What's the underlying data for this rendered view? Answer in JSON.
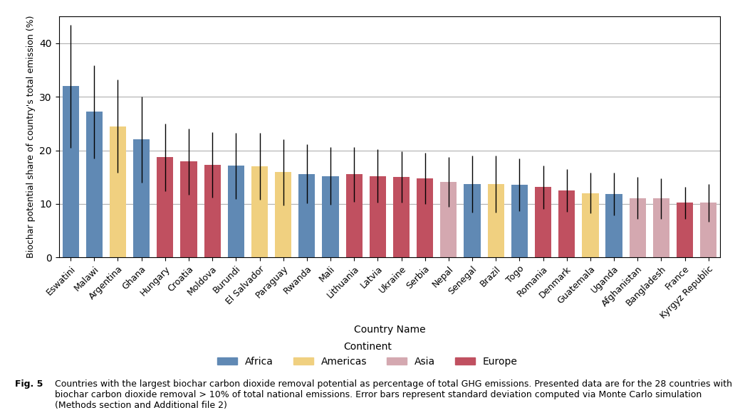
{
  "chart_data": {
    "type": "bar",
    "categories": [
      "Eswatini",
      "Malawi",
      "Argentina",
      "Ghana",
      "Hungary",
      "Croatia",
      "Moldova",
      "Burundi",
      "El Salvador",
      "Paraguay",
      "Rwanda",
      "Mali",
      "Lithuania",
      "Latvia",
      "Ukraine",
      "Serbia",
      "Nepal",
      "Senegal",
      "Brazil",
      "Togo",
      "Romania",
      "Denmark",
      "Guatemala",
      "Uganda",
      "Afghanistan",
      "Bangladesh",
      "France",
      "Kyrgyz Republic"
    ],
    "series": [
      {
        "name": "Africa",
        "color": "#6089B4",
        "values": [
          32.0,
          27.2,
          null,
          22.0,
          null,
          null,
          null,
          17.1,
          null,
          null,
          15.6,
          15.2,
          null,
          null,
          null,
          null,
          null,
          13.7,
          null,
          13.6,
          null,
          null,
          null,
          11.8,
          null,
          null,
          null,
          null
        ],
        "errors": [
          11.5,
          8.7,
          null,
          8.0,
          null,
          null,
          null,
          6.2,
          null,
          null,
          5.5,
          5.4,
          null,
          null,
          null,
          null,
          null,
          5.3,
          null,
          4.9,
          null,
          null,
          null,
          4.0,
          null,
          null,
          null,
          null
        ]
      },
      {
        "name": "Americas",
        "color": "#F0D080",
        "values": [
          null,
          null,
          24.5,
          null,
          null,
          null,
          null,
          null,
          17.0,
          15.9,
          null,
          null,
          null,
          null,
          null,
          null,
          null,
          null,
          13.7,
          null,
          null,
          null,
          12.0,
          null,
          null,
          null,
          null,
          null
        ],
        "errors": [
          null,
          null,
          8.7,
          null,
          null,
          null,
          null,
          null,
          6.2,
          6.2,
          null,
          null,
          null,
          null,
          null,
          null,
          null,
          null,
          5.3,
          null,
          null,
          null,
          3.8,
          null,
          null,
          null,
          null,
          null
        ]
      },
      {
        "name": "Asia",
        "color": "#D4A8B0",
        "values": [
          null,
          null,
          null,
          null,
          null,
          null,
          null,
          null,
          null,
          null,
          null,
          null,
          null,
          null,
          null,
          null,
          14.1,
          null,
          null,
          null,
          null,
          null,
          null,
          null,
          11.1,
          11.0,
          null,
          10.2
        ],
        "errors": [
          null,
          null,
          null,
          null,
          null,
          null,
          null,
          null,
          null,
          null,
          null,
          null,
          null,
          null,
          null,
          null,
          4.7,
          null,
          null,
          null,
          null,
          null,
          null,
          null,
          3.9,
          3.8,
          null,
          3.5
        ]
      },
      {
        "name": "Europe",
        "color": "#C05060",
        "values": [
          null,
          null,
          null,
          null,
          18.7,
          17.9,
          17.3,
          null,
          null,
          null,
          null,
          null,
          15.5,
          15.2,
          15.0,
          14.8,
          null,
          null,
          null,
          null,
          13.1,
          12.5,
          null,
          null,
          null,
          null,
          10.2,
          null
        ],
        "errors": [
          null,
          null,
          null,
          null,
          6.3,
          6.2,
          6.1,
          null,
          null,
          null,
          null,
          null,
          5.1,
          5.0,
          4.8,
          4.8,
          null,
          null,
          null,
          null,
          4.1,
          4.0,
          null,
          null,
          null,
          null,
          3.0,
          null
        ]
      }
    ],
    "xlabel": "Country Name",
    "ylabel": "Biochar potential share of country's total emission (%)",
    "ylim": [
      0,
      45
    ],
    "yticks": [
      0,
      10,
      20,
      30,
      40
    ],
    "grid": true,
    "legend": "lower center",
    "legend_title": "Continent",
    "caption_label": "Fig. 5",
    "caption": "Countries with the largest biochar carbon dioxide removal potential as percentage of total GHG emissions. Presented data are for the 28 countries with biochar carbon dioxide removal > 10% of total national emissions. Error bars represent standard deviation computed via Monte Carlo simulation (Methods section and Additional file 2)"
  }
}
